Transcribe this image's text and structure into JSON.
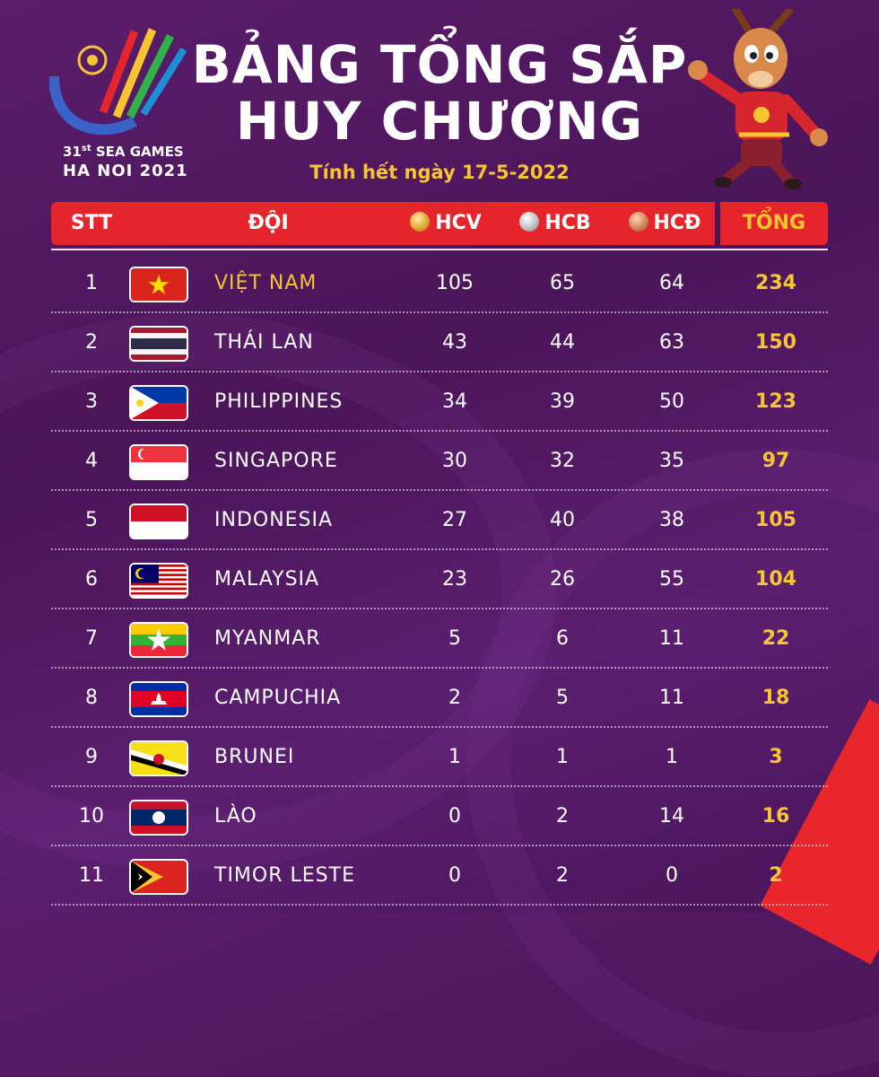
{
  "logo": {
    "edition": "31",
    "edition_suffix": "st",
    "event": "SEA GAMES",
    "place_year": "HA NOI 2021"
  },
  "title_line1": "BẢNG TỔNG SẮP",
  "title_line2": "HUY CHƯƠNG",
  "subtitle": "Tính hết ngày 17-5-2022",
  "header": {
    "stt": "STT",
    "team": "ĐỘI",
    "gold": "HCV",
    "silver": "HCB",
    "bronze": "HCĐ",
    "total": "TỔNG"
  },
  "colors": {
    "header_red": "#e5242b",
    "accent_yellow": "#f7c531",
    "background_purple": "#52196a"
  },
  "rows": [
    {
      "stt": "1",
      "team": "VIỆT NAM",
      "flag": "vietnam-flag",
      "gold": "105",
      "silver": "65",
      "bronze": "64",
      "total": "234"
    },
    {
      "stt": "2",
      "team": "THÁI LAN",
      "flag": "thailand-flag",
      "gold": "43",
      "silver": "44",
      "bronze": "63",
      "total": "150"
    },
    {
      "stt": "3",
      "team": "PHILIPPINES",
      "flag": "philippines-flag",
      "gold": "34",
      "silver": "39",
      "bronze": "50",
      "total": "123"
    },
    {
      "stt": "4",
      "team": "SINGAPORE",
      "flag": "singapore-flag",
      "gold": "30",
      "silver": "32",
      "bronze": "35",
      "total": "97"
    },
    {
      "stt": "5",
      "team": "INDONESIA",
      "flag": "indonesia-flag",
      "gold": "27",
      "silver": "40",
      "bronze": "38",
      "total": "105"
    },
    {
      "stt": "6",
      "team": "MALAYSIA",
      "flag": "malaysia-flag",
      "gold": "23",
      "silver": "26",
      "bronze": "55",
      "total": "104"
    },
    {
      "stt": "7",
      "team": "MYANMAR",
      "flag": "myanmar-flag",
      "gold": "5",
      "silver": "6",
      "bronze": "11",
      "total": "22"
    },
    {
      "stt": "8",
      "team": "CAMPUCHIA",
      "flag": "cambodia-flag",
      "gold": "2",
      "silver": "5",
      "bronze": "11",
      "total": "18"
    },
    {
      "stt": "9",
      "team": "BRUNEI",
      "flag": "brunei-flag",
      "gold": "1",
      "silver": "1",
      "bronze": "1",
      "total": "3"
    },
    {
      "stt": "10",
      "team": "LÀO",
      "flag": "laos-flag",
      "gold": "0",
      "silver": "2",
      "bronze": "14",
      "total": "16"
    },
    {
      "stt": "11",
      "team": "TIMOR LESTE",
      "flag": "timor-leste-flag",
      "gold": "0",
      "silver": "2",
      "bronze": "0",
      "total": "2"
    }
  ]
}
